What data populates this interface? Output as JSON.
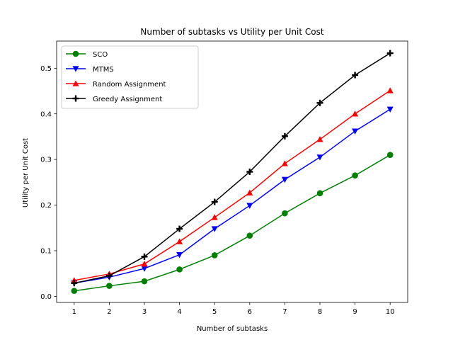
{
  "chart_data": {
    "type": "line",
    "title": "Number of subtasks vs Utility per Unit Cost",
    "xlabel": "Number of subtasks",
    "ylabel": "Utility per Unit Cost",
    "x": [
      1,
      2,
      3,
      4,
      5,
      6,
      7,
      8,
      9,
      10
    ],
    "xlim": [
      0.5,
      10.5
    ],
    "ylim": [
      -0.0134,
      0.5595
    ],
    "xticks": [
      1,
      2,
      3,
      4,
      5,
      6,
      7,
      8,
      9,
      10
    ],
    "yticks": [
      0.0,
      0.1,
      0.2,
      0.3,
      0.4,
      0.5
    ],
    "ytick_labels": [
      "0.0",
      "0.1",
      "0.2",
      "0.3",
      "0.4",
      "0.5"
    ],
    "grid": false,
    "legend_position": "upper-left",
    "series": [
      {
        "name": "SCO",
        "color": "#008000",
        "marker": "circle",
        "values": [
          0.012,
          0.023,
          0.033,
          0.059,
          0.09,
          0.133,
          0.182,
          0.226,
          0.265,
          0.31
        ]
      },
      {
        "name": "MTMS",
        "color": "#0000ff",
        "marker": "triangle-down",
        "values": [
          0.029,
          0.042,
          0.061,
          0.091,
          0.148,
          0.199,
          0.256,
          0.305,
          0.362,
          0.41
        ]
      },
      {
        "name": "Random Assignment",
        "color": "#ff0000",
        "marker": "triangle-up",
        "values": [
          0.035,
          0.049,
          0.071,
          0.12,
          0.173,
          0.227,
          0.291,
          0.344,
          0.4,
          0.451
        ]
      },
      {
        "name": "Greedy Assignment",
        "color": "#000000",
        "marker": "plus",
        "values": [
          0.029,
          0.045,
          0.087,
          0.148,
          0.207,
          0.273,
          0.351,
          0.424,
          0.485,
          0.533
        ]
      }
    ]
  }
}
